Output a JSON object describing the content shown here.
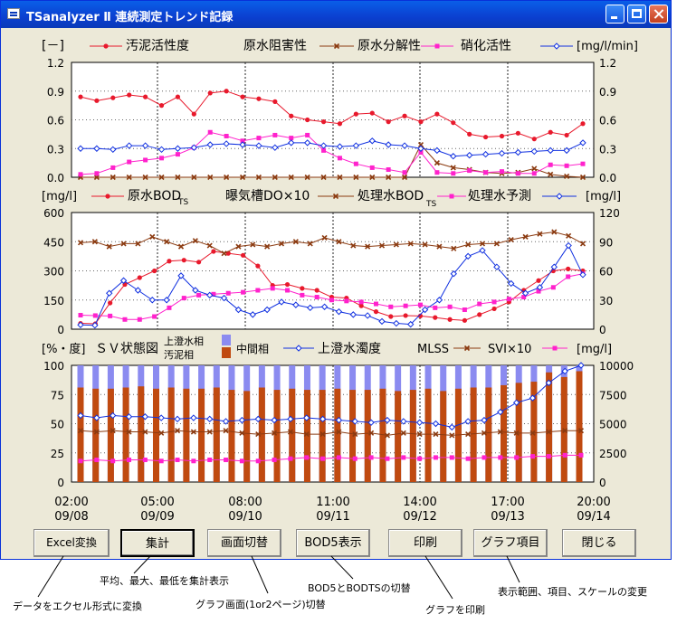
{
  "window": {
    "title": "TSanalyzer Ⅱ 連続測定トレンド記録"
  },
  "chart_data": [
    {
      "type": "line",
      "ylim": [
        0,
        1.2
      ],
      "yticks": [
        "0.0",
        "0.3",
        "0.6",
        "0.9",
        "1.2"
      ],
      "legend": {
        "left_unit": "[－]",
        "right_unit": "[mg/l/min]",
        "items": [
          "汚泥活性度",
          "原水阻害性",
          "原水分解性",
          "硝化活性"
        ]
      },
      "series": [
        {
          "name": "汚泥活性度",
          "color": "#e8192c",
          "marker": "circle",
          "values": [
            0.84,
            0.8,
            0.83,
            0.86,
            0.84,
            0.75,
            0.84,
            0.66,
            0.88,
            0.9,
            0.84,
            0.82,
            0.79,
            0.64,
            0.6,
            0.58,
            0.56,
            0.66,
            0.67,
            0.58,
            0.64,
            0.58,
            0.66,
            0.57,
            0.45,
            0.42,
            0.43,
            0.46,
            0.4,
            0.47,
            0.44,
            0.56
          ]
        },
        {
          "name": "原水阻害性",
          "color": "#8b3a10",
          "marker": "x",
          "values": [
            0,
            0,
            0,
            0,
            0,
            0,
            0,
            0,
            0,
            0,
            0,
            0,
            0,
            0,
            0,
            0,
            0,
            0,
            0,
            0,
            0,
            0.34,
            0.15,
            0.1,
            0.08,
            0.05,
            0.04,
            0.05,
            0.09,
            0.03,
            0.01,
            0
          ]
        },
        {
          "name": "原水分解性",
          "color": "#ff22cc",
          "marker": "square",
          "values": [
            0.03,
            0.04,
            0.1,
            0.16,
            0.18,
            0.2,
            0.24,
            0.31,
            0.47,
            0.43,
            0.38,
            0.41,
            0.44,
            0.41,
            0.44,
            0.28,
            0.2,
            0.14,
            0.1,
            0.08,
            0.05,
            0.26,
            0.05,
            0.04,
            0.07,
            0.05,
            0.06,
            0.04,
            0.04,
            0.13,
            0.12,
            0.14
          ]
        },
        {
          "name": "硝化活性",
          "color": "#1030e0",
          "marker": "diamond",
          "values": [
            0.3,
            0.3,
            0.29,
            0.33,
            0.33,
            0.29,
            0.3,
            0.31,
            0.34,
            0.35,
            0.34,
            0.33,
            0.31,
            0.36,
            0.36,
            0.33,
            0.32,
            0.33,
            0.38,
            0.34,
            0.33,
            0.3,
            0.28,
            0.22,
            0.23,
            0.24,
            0.25,
            0.26,
            0.27,
            0.28,
            0.28,
            0.36
          ]
        }
      ]
    },
    {
      "type": "line",
      "ylim": [
        0,
        600
      ],
      "y2lim": [
        0,
        120
      ],
      "yticks": [
        "0",
        "150",
        "300",
        "450",
        "600"
      ],
      "y2ticks": [
        "0",
        "30",
        "60",
        "90",
        "120"
      ],
      "legend": {
        "left_unit": "[mg/l]",
        "right_unit": "[mg/l]",
        "items": [
          "原水BOD",
          "曝気槽DO×10",
          "処理水BOD",
          "処理水予測"
        ]
      },
      "series": [
        {
          "name": "原水BOD",
          "color": "#e8192c",
          "marker": "circle",
          "values": [
            30,
            28,
            135,
            230,
            265,
            300,
            350,
            355,
            345,
            400,
            390,
            380,
            325,
            225,
            230,
            210,
            200,
            165,
            160,
            120,
            90,
            65,
            70,
            68,
            60,
            50,
            45,
            75,
            105,
            140,
            200,
            250,
            300,
            310,
            300
          ]
        },
        {
          "name": "曝気槽DO×10",
          "color": "#8b3a10",
          "marker": "x",
          "values": [
            89,
            90,
            85,
            88,
            88,
            95,
            90,
            85,
            91,
            86,
            78,
            85,
            87,
            85,
            88,
            90,
            88,
            94,
            90,
            86,
            85,
            86,
            87,
            88,
            87,
            85,
            83,
            87,
            88,
            88,
            92,
            95,
            98,
            100,
            96,
            88
          ]
        },
        {
          "name": "処理水BOD",
          "color": "#ff22cc",
          "marker": "square",
          "values": [
            72,
            70,
            68,
            50,
            50,
            65,
            110,
            160,
            175,
            180,
            185,
            190,
            200,
            210,
            200,
            175,
            165,
            150,
            145,
            140,
            130,
            115,
            120,
            125,
            110,
            115,
            100,
            130,
            140,
            155,
            165,
            195,
            215,
            270,
            285
          ]
        },
        {
          "name": "処理水予測",
          "color": "#1030e0",
          "marker": "diamond",
          "values": [
            22,
            20,
            185,
            250,
            200,
            150,
            150,
            275,
            200,
            175,
            160,
            100,
            75,
            100,
            140,
            125,
            110,
            115,
            90,
            75,
            70,
            40,
            30,
            25,
            100,
            150,
            285,
            375,
            405,
            320,
            235,
            185,
            215,
            320,
            430,
            280
          ]
        }
      ]
    },
    {
      "type": "bar",
      "ylim": [
        0,
        100
      ],
      "y2lim": [
        0,
        10000
      ],
      "yticks": [
        "0",
        "25",
        "50",
        "75",
        "100"
      ],
      "y2ticks": [
        "0",
        "2500",
        "5000",
        "7500",
        "10000"
      ],
      "legend": {
        "left_unit": "[%・度]",
        "title": "ＳＶ状態図",
        "upper_label": "上澄水相",
        "lower_label": "汚泥相",
        "mid_label": "中間相",
        "items": [
          "上澄水濁度",
          "MLSS",
          "SVI×10"
        ],
        "right_unit": "[mg/l]"
      },
      "sludge": [
        81,
        80,
        80,
        81,
        82,
        80,
        81,
        80,
        80,
        81,
        79,
        78,
        81,
        79,
        80,
        79,
        79,
        80,
        79,
        79,
        80,
        78,
        79,
        80,
        78,
        80,
        81,
        81,
        83,
        85,
        86,
        94,
        90,
        95
      ],
      "turbidity": [
        57,
        55,
        57,
        56,
        56,
        55,
        54,
        55,
        54,
        52,
        53,
        54,
        53,
        54,
        55,
        54,
        53,
        52,
        51,
        53,
        52,
        51,
        50,
        47,
        52,
        53,
        60,
        68,
        72,
        85,
        95,
        100
      ],
      "mlss": [
        44,
        43,
        44,
        43,
        43,
        42,
        44,
        43,
        43,
        44,
        42,
        41,
        42,
        43,
        41,
        41,
        43,
        41,
        42,
        40,
        42,
        41,
        41,
        40,
        41,
        42,
        43,
        42,
        42,
        43,
        44,
        44
      ],
      "svi": [
        18,
        19,
        18,
        19,
        19,
        18,
        19,
        18,
        19,
        19,
        18,
        18,
        19,
        20,
        21,
        20,
        21,
        20,
        21,
        20,
        21,
        20,
        21,
        21,
        20,
        21,
        21,
        21,
        22,
        22,
        23,
        23
      ]
    }
  ],
  "time_axis": {
    "ticks": [
      {
        "time": "02:00",
        "date": "09/08"
      },
      {
        "time": "05:00",
        "date": "09/09"
      },
      {
        "time": "08:00",
        "date": "09/10"
      },
      {
        "time": "11:00",
        "date": "09/11"
      },
      {
        "time": "14:00",
        "date": "09/12"
      },
      {
        "time": "17:00",
        "date": "09/13"
      },
      {
        "time": "20:00",
        "date": "09/14"
      }
    ]
  },
  "buttons": {
    "excel": "Excel変換",
    "summary": "集計",
    "switch": "画面切替",
    "bod5": "BOD5表示",
    "print": "印刷",
    "items": "グラフ項目",
    "close": "閉じる"
  },
  "notes": {
    "excel": "データをエクセル形式に変換",
    "summary": "平均、最大、最低を集計表示",
    "switch": "グラフ画面(1or2ページ)切替",
    "bod5": "BOD5とBODTSの切替",
    "print": "グラフを印刷",
    "items": "表示範囲、項目、スケールの変更"
  }
}
